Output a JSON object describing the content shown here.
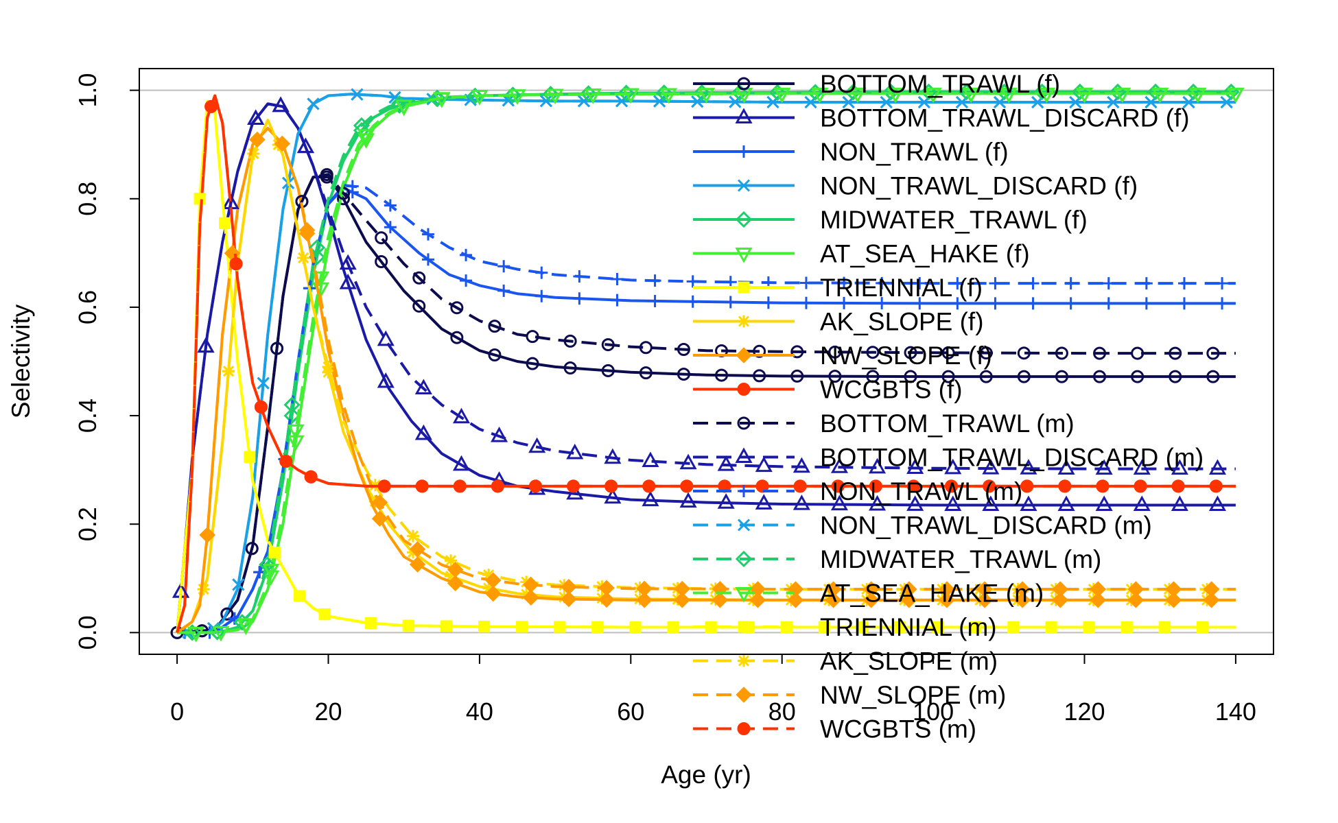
{
  "chart_data": {
    "type": "line",
    "title": "",
    "xlabel": "Age (yr)",
    "ylabel": "Selectivity",
    "xlim": [
      -5,
      145
    ],
    "ylim": [
      -0.04,
      1.04
    ],
    "x_ticks": [
      0,
      20,
      40,
      60,
      80,
      100,
      120,
      140
    ],
    "y_ticks": [
      0.0,
      0.2,
      0.4,
      0.6,
      0.8,
      1.0
    ],
    "x_tick_labels": [
      "0",
      "20",
      "40",
      "60",
      "80",
      "100",
      "120",
      "140"
    ],
    "y_tick_labels": [
      "0.0",
      "0.2",
      "0.4",
      "0.6",
      "0.8",
      "1.0"
    ],
    "reference_lines": [
      0,
      1
    ],
    "legend_position": "top-right",
    "series": [
      {
        "name": "BOTTOM_TRAWL (f)",
        "color": "#0b0b4d",
        "line": "solid",
        "marker": "circle-open",
        "x": [
          0,
          5,
          8,
          10,
          12,
          14,
          16,
          18,
          20,
          22,
          25,
          30,
          35,
          40,
          45,
          50,
          60,
          70,
          80,
          100,
          120,
          140
        ],
        "y": [
          0,
          0.005,
          0.06,
          0.16,
          0.38,
          0.62,
          0.78,
          0.84,
          0.84,
          0.8,
          0.72,
          0.63,
          0.56,
          0.52,
          0.5,
          0.49,
          0.48,
          0.475,
          0.473,
          0.472,
          0.472,
          0.472
        ]
      },
      {
        "name": "BOTTOM_TRAWL_DISCARD (f)",
        "color": "#1a1aa6",
        "line": "solid",
        "marker": "triangle-open",
        "x": [
          0,
          1,
          2,
          4,
          6,
          8,
          10,
          12,
          14,
          16,
          18,
          20,
          22,
          25,
          28,
          31,
          35,
          40,
          45,
          50,
          60,
          70,
          80,
          100,
          120,
          140
        ],
        "y": [
          0,
          0.15,
          0.32,
          0.55,
          0.72,
          0.85,
          0.94,
          0.975,
          0.97,
          0.93,
          0.86,
          0.77,
          0.67,
          0.54,
          0.45,
          0.39,
          0.33,
          0.29,
          0.27,
          0.26,
          0.245,
          0.24,
          0.237,
          0.235,
          0.235,
          0.235
        ]
      },
      {
        "name": "NON_TRAWL (f)",
        "color": "#1a55ee",
        "line": "solid",
        "marker": "plus",
        "x": [
          0,
          5,
          8,
          10,
          12,
          14,
          16,
          18,
          20,
          22,
          25,
          28,
          32,
          36,
          40,
          45,
          50,
          60,
          70,
          80,
          100,
          120,
          140
        ],
        "y": [
          0,
          0,
          0.03,
          0.08,
          0.15,
          0.3,
          0.5,
          0.68,
          0.79,
          0.82,
          0.8,
          0.75,
          0.7,
          0.66,
          0.64,
          0.625,
          0.618,
          0.612,
          0.61,
          0.608,
          0.607,
          0.607,
          0.607
        ]
      },
      {
        "name": "NON_TRAWL_DISCARD (f)",
        "color": "#1aa0e6",
        "line": "solid",
        "marker": "x",
        "x": [
          0,
          4,
          6,
          8,
          10,
          12,
          14,
          16,
          18,
          20,
          23,
          27,
          30,
          40,
          50,
          60,
          80,
          100,
          120,
          140
        ],
        "y": [
          0,
          0,
          0.02,
          0.08,
          0.25,
          0.55,
          0.78,
          0.92,
          0.975,
          0.99,
          0.993,
          0.99,
          0.985,
          0.982,
          0.98,
          0.98,
          0.978,
          0.978,
          0.978,
          0.978
        ]
      },
      {
        "name": "MIDWATER_TRAWL (f)",
        "color": "#1dcf6b",
        "line": "solid",
        "marker": "diamond-open",
        "x": [
          0,
          4,
          6,
          8,
          10,
          12,
          14,
          16,
          18,
          20,
          22,
          24,
          26,
          28,
          30,
          35,
          40,
          50,
          60,
          80,
          100,
          120,
          140
        ],
        "y": [
          0,
          0,
          0.002,
          0.01,
          0.04,
          0.12,
          0.28,
          0.48,
          0.66,
          0.79,
          0.87,
          0.92,
          0.95,
          0.965,
          0.975,
          0.985,
          0.99,
          0.993,
          0.995,
          0.996,
          0.997,
          0.997,
          0.997
        ]
      },
      {
        "name": "AT_SEA_HAKE (f)",
        "color": "#44ee33",
        "line": "solid",
        "marker": "triangle-down-open",
        "x": [
          0,
          5,
          8,
          10,
          12,
          14,
          16,
          18,
          20,
          22,
          24,
          26,
          28,
          30,
          35,
          40,
          50,
          60,
          80,
          100,
          120,
          140
        ],
        "y": [
          0,
          0,
          0.005,
          0.02,
          0.08,
          0.2,
          0.38,
          0.56,
          0.71,
          0.82,
          0.89,
          0.93,
          0.955,
          0.97,
          0.985,
          0.99,
          0.992,
          0.993,
          0.994,
          0.994,
          0.994,
          0.994
        ]
      },
      {
        "name": "TRIENNIAL (f)",
        "color": "#ffff00",
        "line": "solid",
        "marker": "square",
        "x": [
          0,
          2,
          3,
          4,
          5,
          6,
          8,
          10,
          12,
          14,
          16,
          18,
          20,
          25,
          30,
          40,
          60,
          80,
          100,
          120,
          140
        ],
        "y": [
          0,
          0.3,
          0.8,
          0.98,
          0.96,
          0.8,
          0.5,
          0.28,
          0.17,
          0.12,
          0.07,
          0.045,
          0.03,
          0.018,
          0.013,
          0.011,
          0.01,
          0.01,
          0.01,
          0.01,
          0.01
        ]
      },
      {
        "name": "AK_SLOPE (f)",
        "color": "#ffd700",
        "line": "solid",
        "marker": "asterisk",
        "x": [
          0,
          2,
          4,
          6,
          8,
          10,
          12,
          14,
          16,
          18,
          20,
          22,
          25,
          28,
          31,
          35,
          40,
          45,
          50,
          60,
          70,
          80,
          100,
          120,
          140
        ],
        "y": [
          0,
          0.02,
          0.1,
          0.35,
          0.68,
          0.88,
          0.945,
          0.88,
          0.74,
          0.6,
          0.48,
          0.37,
          0.27,
          0.2,
          0.15,
          0.11,
          0.085,
          0.072,
          0.066,
          0.062,
          0.061,
          0.06,
          0.06,
          0.06,
          0.06
        ]
      },
      {
        "name": "NW_SLOPE (f)",
        "color": "#ff9a00",
        "line": "solid",
        "marker": "diamond",
        "x": [
          0,
          2,
          3,
          4,
          6,
          8,
          10,
          12,
          14,
          16,
          18,
          20,
          22,
          24,
          26,
          28,
          30,
          35,
          40,
          45,
          50,
          60,
          80,
          100,
          120,
          140
        ],
        "y": [
          0,
          0.02,
          0.05,
          0.18,
          0.55,
          0.78,
          0.9,
          0.93,
          0.9,
          0.82,
          0.68,
          0.52,
          0.4,
          0.3,
          0.23,
          0.18,
          0.14,
          0.1,
          0.075,
          0.066,
          0.062,
          0.06,
          0.06,
          0.06,
          0.06,
          0.06
        ]
      },
      {
        "name": "WCGBTS (f)",
        "color": "#ff3300",
        "line": "solid",
        "marker": "circle",
        "x": [
          0,
          1,
          2,
          3,
          4,
          5,
          6,
          7,
          8,
          9,
          10,
          12,
          14,
          16,
          18,
          20,
          25,
          30,
          40,
          60,
          80,
          100,
          120,
          140
        ],
        "y": [
          0,
          0.05,
          0.3,
          0.75,
          0.95,
          0.99,
          0.94,
          0.8,
          0.65,
          0.55,
          0.46,
          0.38,
          0.32,
          0.3,
          0.285,
          0.275,
          0.27,
          0.27,
          0.27,
          0.27,
          0.27,
          0.27,
          0.27,
          0.27
        ]
      },
      {
        "name": "BOTTOM_TRAWL (m)",
        "color": "#0b0b4d",
        "line": "dashed",
        "marker": "circle-open",
        "x": [
          0,
          5,
          8,
          10,
          12,
          14,
          16,
          18,
          20,
          22,
          25,
          30,
          35,
          40,
          45,
          50,
          60,
          70,
          80,
          100,
          120,
          140
        ],
        "y": [
          0,
          0.005,
          0.06,
          0.16,
          0.38,
          0.62,
          0.78,
          0.84,
          0.845,
          0.81,
          0.76,
          0.68,
          0.615,
          0.575,
          0.55,
          0.54,
          0.527,
          0.52,
          0.518,
          0.516,
          0.515,
          0.515
        ]
      },
      {
        "name": "BOTTOM_TRAWL_DISCARD (m)",
        "color": "#1a1aa6",
        "line": "dashed",
        "marker": "triangle-open",
        "x": [
          0,
          1,
          2,
          4,
          6,
          8,
          10,
          12,
          14,
          16,
          18,
          20,
          22,
          25,
          28,
          31,
          35,
          40,
          45,
          50,
          60,
          70,
          80,
          100,
          120,
          140
        ],
        "y": [
          0,
          0.15,
          0.32,
          0.55,
          0.72,
          0.85,
          0.94,
          0.975,
          0.97,
          0.93,
          0.86,
          0.78,
          0.7,
          0.6,
          0.53,
          0.47,
          0.42,
          0.375,
          0.35,
          0.335,
          0.318,
          0.31,
          0.306,
          0.303,
          0.302,
          0.302
        ]
      },
      {
        "name": "NON_TRAWL (m)",
        "color": "#1a55ee",
        "line": "dashed",
        "marker": "plus",
        "x": [
          0,
          5,
          8,
          10,
          12,
          14,
          16,
          18,
          20,
          22,
          25,
          28,
          32,
          36,
          40,
          45,
          50,
          60,
          70,
          80,
          100,
          120,
          140
        ],
        "y": [
          0,
          0,
          0.03,
          0.08,
          0.15,
          0.3,
          0.5,
          0.68,
          0.79,
          0.825,
          0.82,
          0.79,
          0.745,
          0.71,
          0.685,
          0.67,
          0.66,
          0.65,
          0.647,
          0.645,
          0.644,
          0.644,
          0.644
        ]
      },
      {
        "name": "NON_TRAWL_DISCARD (m)",
        "color": "#1aa0e6",
        "line": "dashed",
        "marker": "x",
        "x": [
          0,
          4,
          6,
          8,
          10,
          12,
          14,
          16,
          18,
          20,
          23,
          27,
          30,
          40,
          50,
          60,
          80,
          100,
          120,
          140
        ],
        "y": [
          0,
          0,
          0.02,
          0.08,
          0.25,
          0.55,
          0.78,
          0.92,
          0.975,
          0.99,
          0.993,
          0.99,
          0.985,
          0.982,
          0.98,
          0.98,
          0.978,
          0.978,
          0.978,
          0.978
        ]
      },
      {
        "name": "MIDWATER_TRAWL (m)",
        "color": "#1dcf6b",
        "line": "dashed",
        "marker": "diamond-open",
        "x": [
          0,
          4,
          6,
          8,
          10,
          12,
          14,
          16,
          18,
          20,
          22,
          24,
          26,
          28,
          30,
          35,
          40,
          50,
          60,
          80,
          100,
          120,
          140
        ],
        "y": [
          0,
          0,
          0.002,
          0.01,
          0.04,
          0.13,
          0.3,
          0.5,
          0.68,
          0.8,
          0.88,
          0.93,
          0.955,
          0.97,
          0.978,
          0.987,
          0.99,
          0.993,
          0.995,
          0.996,
          0.997,
          0.997,
          0.997
        ]
      },
      {
        "name": "AT_SEA_HAKE (m)",
        "color": "#44ee33",
        "line": "dashed",
        "marker": "triangle-down-open",
        "x": [
          0,
          5,
          8,
          10,
          12,
          14,
          16,
          18,
          20,
          22,
          24,
          26,
          28,
          30,
          35,
          40,
          50,
          60,
          80,
          100,
          120,
          140
        ],
        "y": [
          0,
          0,
          0.005,
          0.025,
          0.09,
          0.22,
          0.4,
          0.58,
          0.73,
          0.83,
          0.9,
          0.935,
          0.958,
          0.972,
          0.986,
          0.99,
          0.992,
          0.993,
          0.994,
          0.994,
          0.994,
          0.994
        ]
      },
      {
        "name": "TRIENNIAL (m)",
        "color": "#ffff00",
        "line": "dashed",
        "marker": "square",
        "x": [
          0,
          2,
          3,
          4,
          5,
          6,
          8,
          10,
          12,
          14,
          16,
          18,
          20,
          25,
          30,
          40,
          60,
          80,
          100,
          120,
          140
        ],
        "y": [
          0,
          0.3,
          0.8,
          0.98,
          0.96,
          0.8,
          0.5,
          0.28,
          0.17,
          0.12,
          0.07,
          0.045,
          0.03,
          0.018,
          0.013,
          0.011,
          0.01,
          0.01,
          0.01,
          0.01,
          0.01
        ]
      },
      {
        "name": "AK_SLOPE (m)",
        "color": "#ffd700",
        "line": "dashed",
        "marker": "asterisk",
        "x": [
          0,
          2,
          4,
          6,
          8,
          10,
          12,
          14,
          16,
          18,
          20,
          22,
          25,
          28,
          31,
          35,
          40,
          45,
          50,
          60,
          70,
          80,
          100,
          120,
          140
        ],
        "y": [
          0,
          0.02,
          0.1,
          0.35,
          0.68,
          0.88,
          0.945,
          0.88,
          0.74,
          0.6,
          0.49,
          0.39,
          0.3,
          0.23,
          0.18,
          0.14,
          0.11,
          0.095,
          0.088,
          0.083,
          0.081,
          0.08,
          0.08,
          0.08,
          0.08
        ]
      },
      {
        "name": "NW_SLOPE (m)",
        "color": "#ff9a00",
        "line": "dashed",
        "marker": "diamond",
        "x": [
          0,
          2,
          3,
          4,
          6,
          8,
          10,
          12,
          14,
          16,
          18,
          20,
          22,
          24,
          26,
          28,
          30,
          35,
          40,
          45,
          50,
          60,
          80,
          100,
          120,
          140
        ],
        "y": [
          0,
          0.02,
          0.05,
          0.18,
          0.55,
          0.78,
          0.9,
          0.93,
          0.9,
          0.82,
          0.69,
          0.54,
          0.42,
          0.33,
          0.26,
          0.21,
          0.17,
          0.125,
          0.1,
          0.09,
          0.085,
          0.081,
          0.08,
          0.08,
          0.08,
          0.08
        ]
      },
      {
        "name": "WCGBTS (m)",
        "color": "#ff3300",
        "line": "dashed",
        "marker": "circle",
        "x": [
          0,
          1,
          2,
          3,
          4,
          5,
          6,
          7,
          8,
          9,
          10,
          12,
          14,
          16,
          18,
          20,
          25,
          30,
          40,
          60,
          80,
          100,
          120,
          140
        ],
        "y": [
          0,
          0.05,
          0.3,
          0.75,
          0.95,
          0.99,
          0.94,
          0.8,
          0.65,
          0.55,
          0.46,
          0.38,
          0.32,
          0.3,
          0.285,
          0.275,
          0.27,
          0.27,
          0.27,
          0.27,
          0.27,
          0.27,
          0.27,
          0.27
        ]
      }
    ]
  }
}
